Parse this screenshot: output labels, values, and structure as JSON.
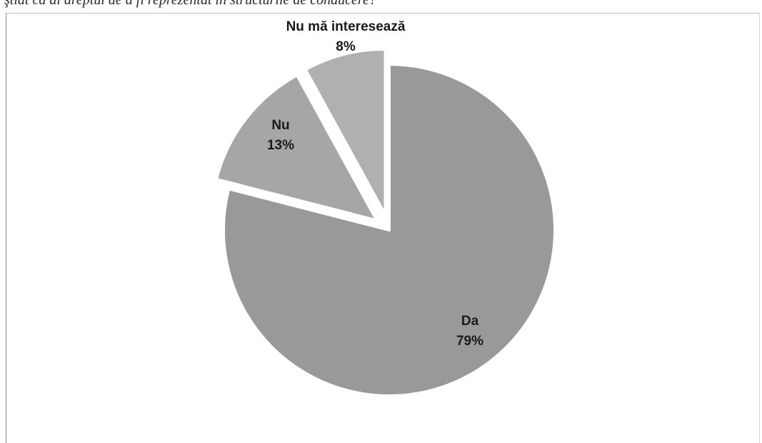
{
  "caption": "ştiat că ai dreptul de a fi reprezentat în structurile de conducere?",
  "chart_data": {
    "type": "pie",
    "title": "",
    "slices": [
      {
        "label": "Da",
        "value": 79,
        "percent_label": "79%",
        "color": "#999999",
        "exploded": false
      },
      {
        "label": "Nu",
        "value": 13,
        "percent_label": "13%",
        "color": "#a6a6a6",
        "exploded": true
      },
      {
        "label": "Nu mă interesează",
        "value": 8,
        "percent_label": "8%",
        "color": "#b0b0b0",
        "exploded": true
      }
    ],
    "start_angle": "top",
    "direction": "clockwise",
    "legend": "none",
    "data_labels": "category-and-percent"
  }
}
